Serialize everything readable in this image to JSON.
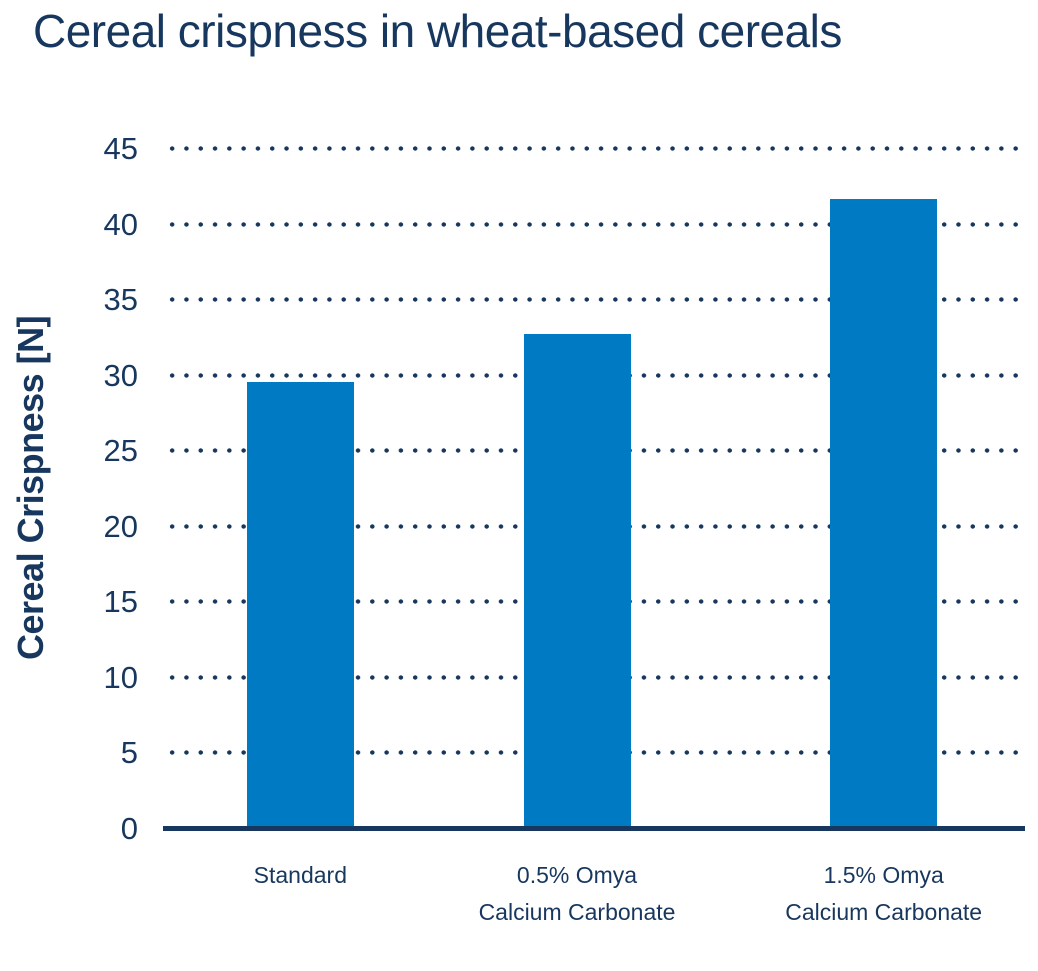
{
  "chart_data": {
    "type": "bar",
    "title": "Cereal crispness in wheat-based cereals",
    "ylabel": "Cereal Crispness [N]",
    "xlabel": "",
    "categories": [
      "Standard",
      "0.5% Omya\nCalcium Carbonate",
      "1.5% Omya\nCalcium Carbonate"
    ],
    "values": [
      29.5,
      32.7,
      41.6
    ],
    "value_unit": "N",
    "ylim": [
      0,
      45
    ],
    "yticks": [
      0,
      5,
      10,
      15,
      20,
      25,
      30,
      35,
      40,
      45
    ],
    "grid": "horizontal-dotted",
    "legend_position": "none",
    "colors": {
      "bar_fill": "#007AC2",
      "text_navy": "#17375E",
      "background": "#FFFFFF"
    }
  }
}
